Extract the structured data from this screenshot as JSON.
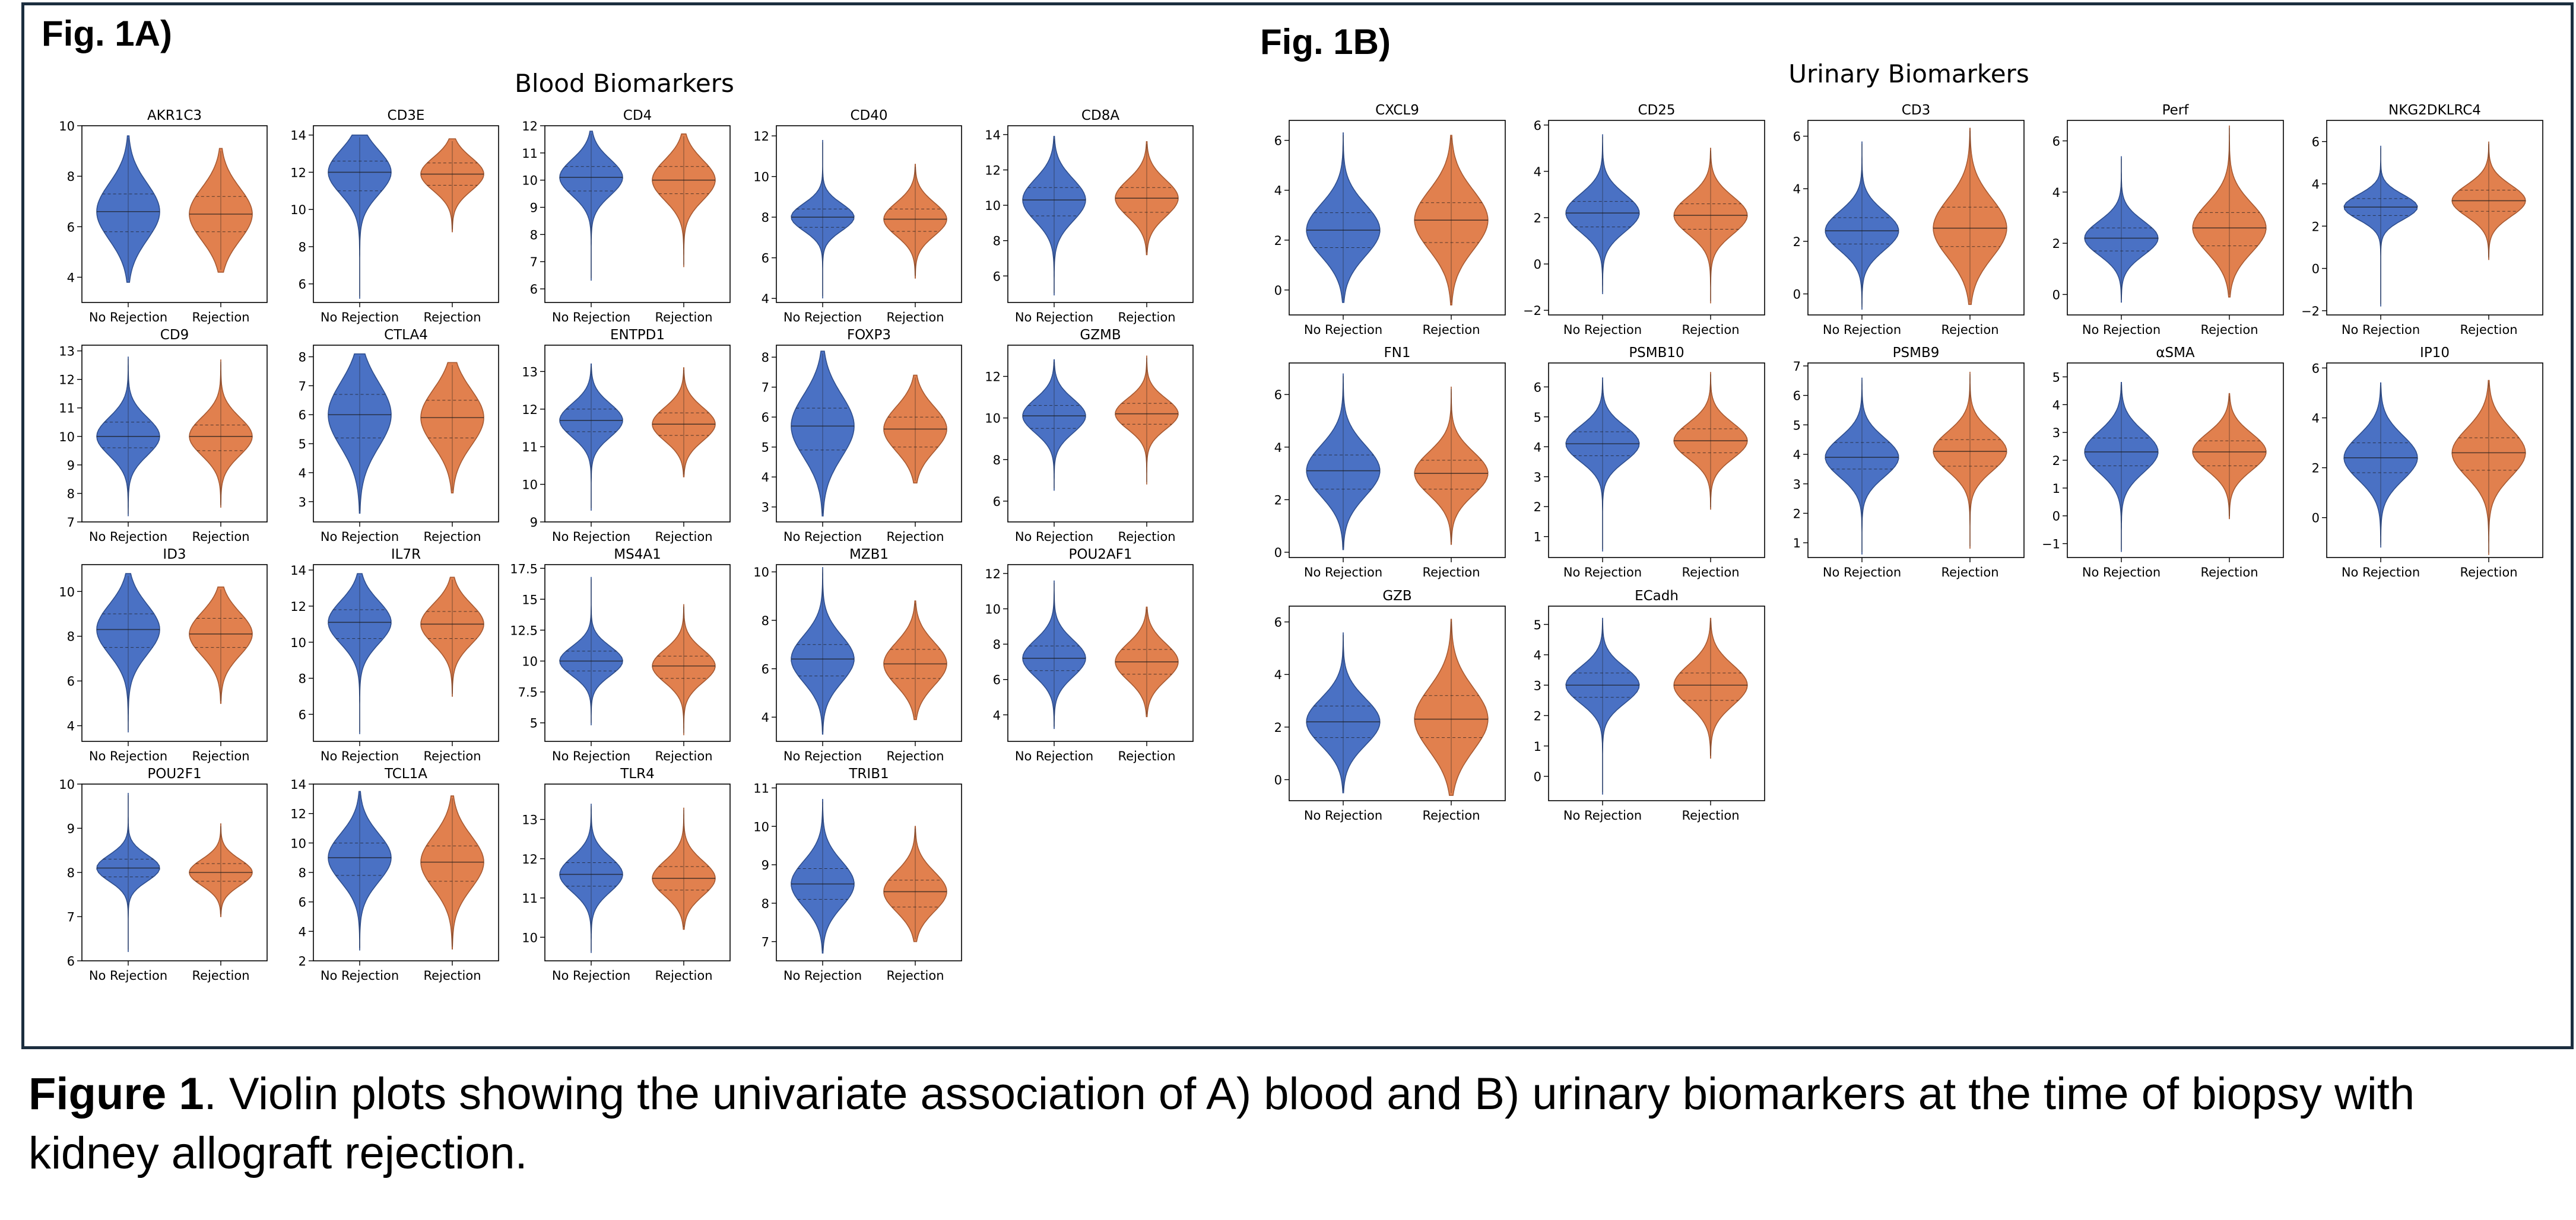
{
  "figure_a": {
    "label": "Fig. 1A)",
    "title": "Blood Biomarkers"
  },
  "figure_b": {
    "label": "Fig. 1B)",
    "title": "Urinary Biomarkers"
  },
  "caption": {
    "bold": "Figure 1",
    "text": ". Violin plots showing the univariate association of  A) blood and B) urinary biomarkers at the time of biopsy with kidney allograft rejection."
  },
  "colors": {
    "no_rejection": "#4a71c4",
    "rejection": "#e1804e"
  },
  "chart_data": [
    {
      "type": "violin",
      "panel": "A",
      "title": "AKR1C3",
      "categories": [
        "No Rejection",
        "Rejection"
      ],
      "yticks": [
        4,
        6,
        8,
        10
      ],
      "ylim": [
        3,
        10
      ],
      "series": [
        {
          "median": 6.6,
          "q1": 5.8,
          "q3": 7.3,
          "min": 3.8,
          "max": 9.6
        },
        {
          "median": 6.5,
          "q1": 5.8,
          "q3": 7.2,
          "min": 4.2,
          "max": 9.1
        }
      ]
    },
    {
      "type": "violin",
      "panel": "A",
      "title": "CD3E",
      "categories": [
        "No Rejection",
        "Rejection"
      ],
      "yticks": [
        6,
        8,
        10,
        12,
        14
      ],
      "ylim": [
        5,
        14.5
      ],
      "series": [
        {
          "median": 12.0,
          "q1": 11.0,
          "q3": 12.6,
          "min": 5.2,
          "max": 14.0
        },
        {
          "median": 11.9,
          "q1": 11.3,
          "q3": 12.5,
          "min": 8.8,
          "max": 13.8
        }
      ]
    },
    {
      "type": "violin",
      "panel": "A",
      "title": "CD4",
      "categories": [
        "No Rejection",
        "Rejection"
      ],
      "yticks": [
        6,
        7,
        8,
        9,
        10,
        11,
        12
      ],
      "ylim": [
        5.5,
        12
      ],
      "series": [
        {
          "median": 10.1,
          "q1": 9.6,
          "q3": 10.5,
          "min": 6.3,
          "max": 11.8
        },
        {
          "median": 10.0,
          "q1": 9.5,
          "q3": 10.5,
          "min": 6.8,
          "max": 11.7
        }
      ]
    },
    {
      "type": "violin",
      "panel": "A",
      "title": "CD40",
      "categories": [
        "No Rejection",
        "Rejection"
      ],
      "yticks": [
        4,
        6,
        8,
        10,
        12
      ],
      "ylim": [
        3.8,
        12.5
      ],
      "series": [
        {
          "median": 8.0,
          "q1": 7.5,
          "q3": 8.4,
          "min": 4.0,
          "max": 11.8
        },
        {
          "median": 7.9,
          "q1": 7.3,
          "q3": 8.4,
          "min": 5.0,
          "max": 10.6
        }
      ]
    },
    {
      "type": "violin",
      "panel": "A",
      "title": "CD8A",
      "categories": [
        "No Rejection",
        "Rejection"
      ],
      "yticks": [
        6,
        8,
        10,
        12,
        14
      ],
      "ylim": [
        4.5,
        14.5
      ],
      "series": [
        {
          "median": 10.3,
          "q1": 9.4,
          "q3": 11.0,
          "min": 4.9,
          "max": 13.9
        },
        {
          "median": 10.4,
          "q1": 9.6,
          "q3": 11.0,
          "min": 7.2,
          "max": 13.6
        }
      ]
    },
    {
      "type": "violin",
      "panel": "A",
      "title": "CD9",
      "categories": [
        "No Rejection",
        "Rejection"
      ],
      "yticks": [
        7,
        8,
        9,
        10,
        11,
        12,
        13
      ],
      "ylim": [
        7,
        13.2
      ],
      "series": [
        {
          "median": 10.0,
          "q1": 9.6,
          "q3": 10.5,
          "min": 7.2,
          "max": 12.8
        },
        {
          "median": 10.0,
          "q1": 9.5,
          "q3": 10.4,
          "min": 7.5,
          "max": 12.7
        }
      ]
    },
    {
      "type": "violin",
      "panel": "A",
      "title": "CTLA4",
      "categories": [
        "No Rejection",
        "Rejection"
      ],
      "yticks": [
        3,
        4,
        5,
        6,
        7,
        8
      ],
      "ylim": [
        2.3,
        8.4
      ],
      "series": [
        {
          "median": 6.0,
          "q1": 5.2,
          "q3": 6.7,
          "min": 2.6,
          "max": 8.1
        },
        {
          "median": 5.9,
          "q1": 5.2,
          "q3": 6.5,
          "min": 3.3,
          "max": 7.8
        }
      ]
    },
    {
      "type": "violin",
      "panel": "A",
      "title": "ENTPD1",
      "categories": [
        "No Rejection",
        "Rejection"
      ],
      "yticks": [
        9,
        10,
        11,
        12,
        13
      ],
      "ylim": [
        9,
        13.7
      ],
      "series": [
        {
          "median": 11.7,
          "q1": 11.4,
          "q3": 12.0,
          "min": 9.3,
          "max": 13.2
        },
        {
          "median": 11.6,
          "q1": 11.3,
          "q3": 11.9,
          "min": 10.2,
          "max": 13.1
        }
      ]
    },
    {
      "type": "violin",
      "panel": "A",
      "title": "FOXP3",
      "categories": [
        "No Rejection",
        "Rejection"
      ],
      "yticks": [
        3,
        4,
        5,
        6,
        7,
        8
      ],
      "ylim": [
        2.5,
        8.4
      ],
      "series": [
        {
          "median": 5.7,
          "q1": 4.9,
          "q3": 6.3,
          "min": 2.7,
          "max": 8.2
        },
        {
          "median": 5.6,
          "q1": 5.0,
          "q3": 6.0,
          "min": 3.8,
          "max": 7.4
        }
      ]
    },
    {
      "type": "violin",
      "panel": "A",
      "title": "GZMB",
      "categories": [
        "No Rejection",
        "Rejection"
      ],
      "yticks": [
        6,
        8,
        10,
        12
      ],
      "ylim": [
        5,
        13.5
      ],
      "series": [
        {
          "median": 10.1,
          "q1": 9.5,
          "q3": 10.6,
          "min": 6.5,
          "max": 12.8
        },
        {
          "median": 10.2,
          "q1": 9.7,
          "q3": 10.7,
          "min": 6.8,
          "max": 13.0
        }
      ]
    },
    {
      "type": "violin",
      "panel": "A",
      "title": "ID3",
      "categories": [
        "No Rejection",
        "Rejection"
      ],
      "yticks": [
        4,
        6,
        8,
        10
      ],
      "ylim": [
        3.3,
        11.2
      ],
      "series": [
        {
          "median": 8.3,
          "q1": 7.5,
          "q3": 9.0,
          "min": 3.7,
          "max": 10.8
        },
        {
          "median": 8.1,
          "q1": 7.5,
          "q3": 8.8,
          "min": 5.0,
          "max": 10.2
        }
      ]
    },
    {
      "type": "violin",
      "panel": "A",
      "title": "IL7R",
      "categories": [
        "No Rejection",
        "Rejection"
      ],
      "yticks": [
        6,
        8,
        10,
        12,
        14
      ],
      "ylim": [
        4.5,
        14.3
      ],
      "series": [
        {
          "median": 11.1,
          "q1": 10.2,
          "q3": 11.8,
          "min": 4.9,
          "max": 13.8
        },
        {
          "median": 11.0,
          "q1": 10.2,
          "q3": 11.7,
          "min": 7.0,
          "max": 13.6
        }
      ]
    },
    {
      "type": "violin",
      "panel": "A",
      "title": "MS4A1",
      "categories": [
        "No Rejection",
        "Rejection"
      ],
      "yticks": [
        5.0,
        7.5,
        10.0,
        12.5,
        15.0,
        17.5
      ],
      "ylim": [
        3.5,
        17.8
      ],
      "series": [
        {
          "median": 10.0,
          "q1": 9.2,
          "q3": 10.8,
          "min": 4.8,
          "max": 16.8
        },
        {
          "median": 9.6,
          "q1": 8.6,
          "q3": 10.4,
          "min": 4.0,
          "max": 14.6
        }
      ]
    },
    {
      "type": "violin",
      "panel": "A",
      "title": "MZB1",
      "categories": [
        "No Rejection",
        "Rejection"
      ],
      "yticks": [
        4,
        6,
        8,
        10
      ],
      "ylim": [
        3,
        10.3
      ],
      "series": [
        {
          "median": 6.4,
          "q1": 5.7,
          "q3": 7.0,
          "min": 3.3,
          "max": 10.2
        },
        {
          "median": 6.2,
          "q1": 5.6,
          "q3": 6.8,
          "min": 3.9,
          "max": 8.8
        }
      ]
    },
    {
      "type": "violin",
      "panel": "A",
      "title": "POU2AF1",
      "categories": [
        "No Rejection",
        "Rejection"
      ],
      "yticks": [
        4,
        6,
        8,
        10,
        12
      ],
      "ylim": [
        2.5,
        12.5
      ],
      "series": [
        {
          "median": 7.2,
          "q1": 6.5,
          "q3": 7.9,
          "min": 3.2,
          "max": 11.6
        },
        {
          "median": 7.0,
          "q1": 6.3,
          "q3": 7.7,
          "min": 3.9,
          "max": 10.1
        }
      ]
    },
    {
      "type": "violin",
      "panel": "A",
      "title": "POU2F1",
      "categories": [
        "No Rejection",
        "Rejection"
      ],
      "yticks": [
        6,
        7,
        8,
        9,
        10
      ],
      "ylim": [
        6,
        10
      ],
      "series": [
        {
          "median": 8.1,
          "q1": 7.9,
          "q3": 8.3,
          "min": 6.2,
          "max": 9.8
        },
        {
          "median": 8.0,
          "q1": 7.8,
          "q3": 8.2,
          "min": 7.0,
          "max": 9.1
        }
      ]
    },
    {
      "type": "violin",
      "panel": "A",
      "title": "TCL1A",
      "categories": [
        "No Rejection",
        "Rejection"
      ],
      "yticks": [
        2,
        4,
        6,
        8,
        10,
        12,
        14
      ],
      "ylim": [
        2,
        14
      ],
      "series": [
        {
          "median": 9.0,
          "q1": 7.8,
          "q3": 10.0,
          "min": 2.7,
          "max": 13.5
        },
        {
          "median": 8.7,
          "q1": 7.4,
          "q3": 9.8,
          "min": 2.8,
          "max": 13.2
        }
      ]
    },
    {
      "type": "violin",
      "panel": "A",
      "title": "TLR4",
      "categories": [
        "No Rejection",
        "Rejection"
      ],
      "yticks": [
        10,
        11,
        12,
        13
      ],
      "ylim": [
        9.4,
        13.9
      ],
      "series": [
        {
          "median": 11.6,
          "q1": 11.3,
          "q3": 11.9,
          "min": 9.6,
          "max": 13.4
        },
        {
          "median": 11.5,
          "q1": 11.2,
          "q3": 11.8,
          "min": 10.2,
          "max": 13.3
        }
      ]
    },
    {
      "type": "violin",
      "panel": "A",
      "title": "TRIB1",
      "categories": [
        "No Rejection",
        "Rejection"
      ],
      "yticks": [
        7,
        8,
        9,
        10,
        11
      ],
      "ylim": [
        6.5,
        11.1
      ],
      "series": [
        {
          "median": 8.5,
          "q1": 8.1,
          "q3": 8.9,
          "min": 6.7,
          "max": 10.7
        },
        {
          "median": 8.3,
          "q1": 7.9,
          "q3": 8.6,
          "min": 7.0,
          "max": 10.0
        }
      ]
    },
    {
      "type": "violin",
      "panel": "B",
      "title": "CXCL9",
      "categories": [
        "No Rejection",
        "Rejection"
      ],
      "yticks": [
        0,
        2,
        4,
        6
      ],
      "ylim": [
        -1,
        6.8
      ],
      "series": [
        {
          "median": 2.4,
          "q1": 1.7,
          "q3": 3.1,
          "min": -0.5,
          "max": 6.3
        },
        {
          "median": 2.8,
          "q1": 1.9,
          "q3": 3.5,
          "min": -0.6,
          "max": 6.2
        }
      ]
    },
    {
      "type": "violin",
      "panel": "B",
      "title": "CD25",
      "categories": [
        "No Rejection",
        "Rejection"
      ],
      "yticks": [
        -2,
        0,
        2,
        4,
        6
      ],
      "ylim": [
        -2.2,
        6.2
      ],
      "series": [
        {
          "median": 2.2,
          "q1": 1.6,
          "q3": 2.7,
          "min": -1.3,
          "max": 5.6
        },
        {
          "median": 2.1,
          "q1": 1.5,
          "q3": 2.6,
          "min": -1.7,
          "max": 5.0
        }
      ]
    },
    {
      "type": "violin",
      "panel": "B",
      "title": "CD3",
      "categories": [
        "No Rejection",
        "Rejection"
      ],
      "yticks": [
        0,
        2,
        4,
        6
      ],
      "ylim": [
        -0.8,
        6.6
      ],
      "series": [
        {
          "median": 2.4,
          "q1": 1.9,
          "q3": 2.9,
          "min": -0.6,
          "max": 5.8
        },
        {
          "median": 2.5,
          "q1": 1.8,
          "q3": 3.3,
          "min": -0.4,
          "max": 6.3
        }
      ]
    },
    {
      "type": "violin",
      "panel": "B",
      "title": "Perf",
      "categories": [
        "No Rejection",
        "Rejection"
      ],
      "yticks": [
        0,
        2,
        4,
        6
      ],
      "ylim": [
        -0.8,
        6.8
      ],
      "series": [
        {
          "median": 2.2,
          "q1": 1.7,
          "q3": 2.6,
          "min": -0.3,
          "max": 5.4
        },
        {
          "median": 2.6,
          "q1": 1.9,
          "q3": 3.2,
          "min": -0.1,
          "max": 6.6
        }
      ]
    },
    {
      "type": "violin",
      "panel": "B",
      "title": "NKG2DKLRC4",
      "categories": [
        "No Rejection",
        "Rejection"
      ],
      "yticks": [
        -2,
        0,
        2,
        4,
        6
      ],
      "ylim": [
        -2.2,
        7
      ],
      "series": [
        {
          "median": 2.9,
          "q1": 2.5,
          "q3": 3.3,
          "min": -1.8,
          "max": 5.8
        },
        {
          "median": 3.2,
          "q1": 2.7,
          "q3": 3.7,
          "min": 0.4,
          "max": 6.0
        }
      ]
    },
    {
      "type": "violin",
      "panel": "B",
      "title": "FN1",
      "categories": [
        "No Rejection",
        "Rejection"
      ],
      "yticks": [
        0,
        2,
        4,
        6
      ],
      "ylim": [
        -0.2,
        7.2
      ],
      "series": [
        {
          "median": 3.1,
          "q1": 2.4,
          "q3": 3.7,
          "min": 0.1,
          "max": 6.8
        },
        {
          "median": 3.0,
          "q1": 2.4,
          "q3": 3.5,
          "min": 0.3,
          "max": 6.3
        }
      ]
    },
    {
      "type": "violin",
      "panel": "B",
      "title": "PSMB10",
      "categories": [
        "No Rejection",
        "Rejection"
      ],
      "yticks": [
        1,
        2,
        3,
        4,
        5,
        6
      ],
      "ylim": [
        0.3,
        6.8
      ],
      "series": [
        {
          "median": 4.1,
          "q1": 3.7,
          "q3": 4.5,
          "min": 0.5,
          "max": 6.3
        },
        {
          "median": 4.2,
          "q1": 3.8,
          "q3": 4.6,
          "min": 1.9,
          "max": 6.5
        }
      ]
    },
    {
      "type": "violin",
      "panel": "B",
      "title": "PSMB9",
      "categories": [
        "No Rejection",
        "Rejection"
      ],
      "yticks": [
        1,
        2,
        3,
        4,
        5,
        6,
        7
      ],
      "ylim": [
        0.5,
        7.1
      ],
      "series": [
        {
          "median": 3.9,
          "q1": 3.5,
          "q3": 4.4,
          "min": 0.6,
          "max": 6.6
        },
        {
          "median": 4.1,
          "q1": 3.6,
          "q3": 4.5,
          "min": 0.8,
          "max": 6.8
        }
      ]
    },
    {
      "type": "violin",
      "panel": "B",
      "title": "αSMA",
      "categories": [
        "No Rejection",
        "Rejection"
      ],
      "yticks": [
        -1,
        0,
        1,
        2,
        3,
        4,
        5
      ],
      "ylim": [
        -1.5,
        5.5
      ],
      "series": [
        {
          "median": 2.3,
          "q1": 1.8,
          "q3": 2.8,
          "min": -1.3,
          "max": 4.8
        },
        {
          "median": 2.3,
          "q1": 1.8,
          "q3": 2.7,
          "min": -0.1,
          "max": 4.4
        }
      ]
    },
    {
      "type": "violin",
      "panel": "B",
      "title": "IP10",
      "categories": [
        "No Rejection",
        "Rejection"
      ],
      "yticks": [
        0,
        2,
        4,
        6
      ],
      "ylim": [
        -1.6,
        6.2
      ],
      "series": [
        {
          "median": 2.4,
          "q1": 1.8,
          "q3": 3.0,
          "min": -1.2,
          "max": 5.4
        },
        {
          "median": 2.6,
          "q1": 1.9,
          "q3": 3.2,
          "min": -1.5,
          "max": 5.5
        }
      ]
    },
    {
      "type": "violin",
      "panel": "B",
      "title": "GZB",
      "categories": [
        "No Rejection",
        "Rejection"
      ],
      "yticks": [
        0,
        2,
        4,
        6
      ],
      "ylim": [
        -0.8,
        6.6
      ],
      "series": [
        {
          "median": 2.2,
          "q1": 1.6,
          "q3": 2.8,
          "min": -0.5,
          "max": 5.6
        },
        {
          "median": 2.3,
          "q1": 1.6,
          "q3": 3.2,
          "min": -0.6,
          "max": 6.1
        }
      ]
    },
    {
      "type": "violin",
      "panel": "B",
      "title": "ECadh",
      "categories": [
        "No Rejection",
        "Rejection"
      ],
      "yticks": [
        0,
        1,
        2,
        3,
        4,
        5
      ],
      "ylim": [
        -0.8,
        5.6
      ],
      "series": [
        {
          "median": 3.0,
          "q1": 2.6,
          "q3": 3.4,
          "min": -0.6,
          "max": 5.2
        },
        {
          "median": 3.0,
          "q1": 2.5,
          "q3": 3.4,
          "min": 0.6,
          "max": 5.2
        }
      ]
    }
  ]
}
